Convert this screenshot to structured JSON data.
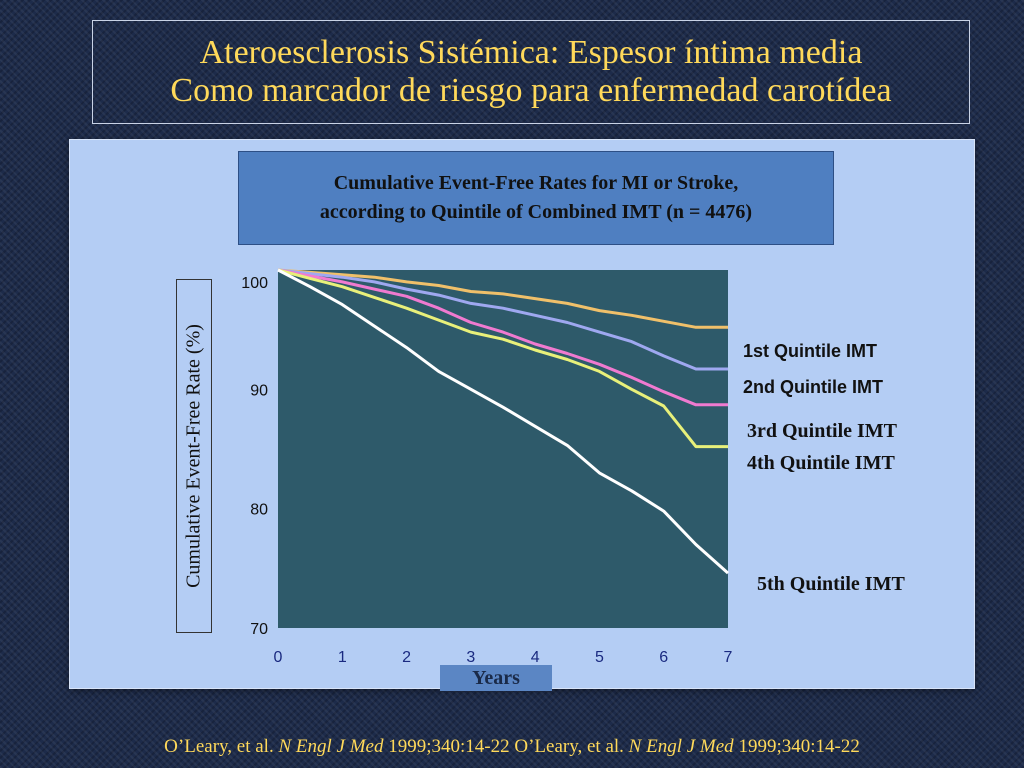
{
  "slide": {
    "title_line1": "Ateroesclerosis Sistémica: Espesor íntima media",
    "title_line2": "Como marcador de riesgo para enfermedad carotídea"
  },
  "footer": {
    "part1_normal": "O’Leary, et al. ",
    "part1_italic": "N Engl J Med",
    "part1_rest": " 1999;340:14-22 ",
    "part2_normal": "O’Leary, et al. ",
    "part2_italic": "N Engl J Med",
    "part2_rest": " 1999;340:14-22"
  },
  "chart_data": {
    "type": "line",
    "title_line1": "Cumulative Event-Free Rates for MI or Stroke,",
    "title_line2": "according to Quintile of Combined IMT (n = 4476)",
    "xlabel": "Years",
    "ylabel": "Cumulative Event-Free Rate (%)",
    "xlim": [
      0,
      7
    ],
    "ylim": [
      70,
      100
    ],
    "x_ticks": [
      "0",
      "1",
      "2",
      "3",
      "4",
      "5",
      "6",
      "7"
    ],
    "y_ticks": [
      "100",
      "90",
      "80",
      "70"
    ],
    "grid": false,
    "legend": "direct labels at right",
    "plot_background": "#2e5a6a",
    "series": [
      {
        "name": "1st Quintile IMT",
        "color": "#f0c06a",
        "x": [
          0,
          0.5,
          1,
          1.5,
          2,
          2.5,
          3,
          3.5,
          4,
          4.5,
          5,
          5.5,
          6,
          6.5,
          7
        ],
        "y": [
          100,
          99.8,
          99.6,
          99.4,
          99.0,
          98.7,
          98.2,
          98.0,
          97.6,
          97.2,
          96.6,
          96.2,
          95.7,
          95.2,
          95.2
        ]
      },
      {
        "name": "2nd Quintile IMT",
        "color": "#9fa8f0",
        "x": [
          0,
          0.5,
          1,
          1.5,
          2,
          2.5,
          3,
          3.5,
          4,
          4.5,
          5,
          5.5,
          6,
          6.5,
          7
        ],
        "y": [
          100,
          99.7,
          99.4,
          99.0,
          98.4,
          97.9,
          97.2,
          96.8,
          96.2,
          95.6,
          94.8,
          94.0,
          92.8,
          91.7,
          91.7
        ]
      },
      {
        "name": "3rd Quintile IMT",
        "color": "#f07ad0",
        "x": [
          0,
          0.5,
          1,
          1.5,
          2,
          2.5,
          3,
          3.5,
          4,
          4.5,
          5,
          5.5,
          6,
          6.5,
          7
        ],
        "y": [
          100,
          99.5,
          99.0,
          98.4,
          97.8,
          96.8,
          95.6,
          94.8,
          93.8,
          93.0,
          92.1,
          91.0,
          89.8,
          88.7,
          88.7
        ]
      },
      {
        "name": "4th Quintile IMT",
        "color": "#e8f07a",
        "x": [
          0,
          0.5,
          1,
          1.5,
          2,
          2.5,
          3,
          3.5,
          4,
          4.5,
          5,
          5.5,
          6,
          6.5,
          7
        ],
        "y": [
          100,
          99.3,
          98.6,
          97.7,
          96.8,
          95.8,
          94.8,
          94.2,
          93.3,
          92.5,
          91.5,
          90.0,
          88.6,
          85.2,
          85.2
        ]
      },
      {
        "name": "5th Quintile IMT",
        "color": "#ffffff",
        "x": [
          0,
          0.5,
          1,
          1.5,
          2,
          2.5,
          3,
          3.5,
          4,
          4.5,
          5,
          5.5,
          6,
          6.5,
          7
        ],
        "y": [
          100,
          98.6,
          97.1,
          95.3,
          93.5,
          91.5,
          90.0,
          88.5,
          86.9,
          85.3,
          83.0,
          81.5,
          79.8,
          77.0,
          74.6
        ]
      }
    ],
    "labels": [
      {
        "text": "1st Quintile IMT",
        "font": "sans",
        "series": 0
      },
      {
        "text": "2nd Quintile IMT",
        "font": "sans",
        "series": 1
      },
      {
        "text": "3rd Quintile IMT",
        "font": "serif",
        "series": 2
      },
      {
        "text": "4th Quintile IMT",
        "font": "serif",
        "series": 3
      },
      {
        "text": "5th Quintile IMT",
        "font": "serif",
        "series": 4
      }
    ]
  }
}
